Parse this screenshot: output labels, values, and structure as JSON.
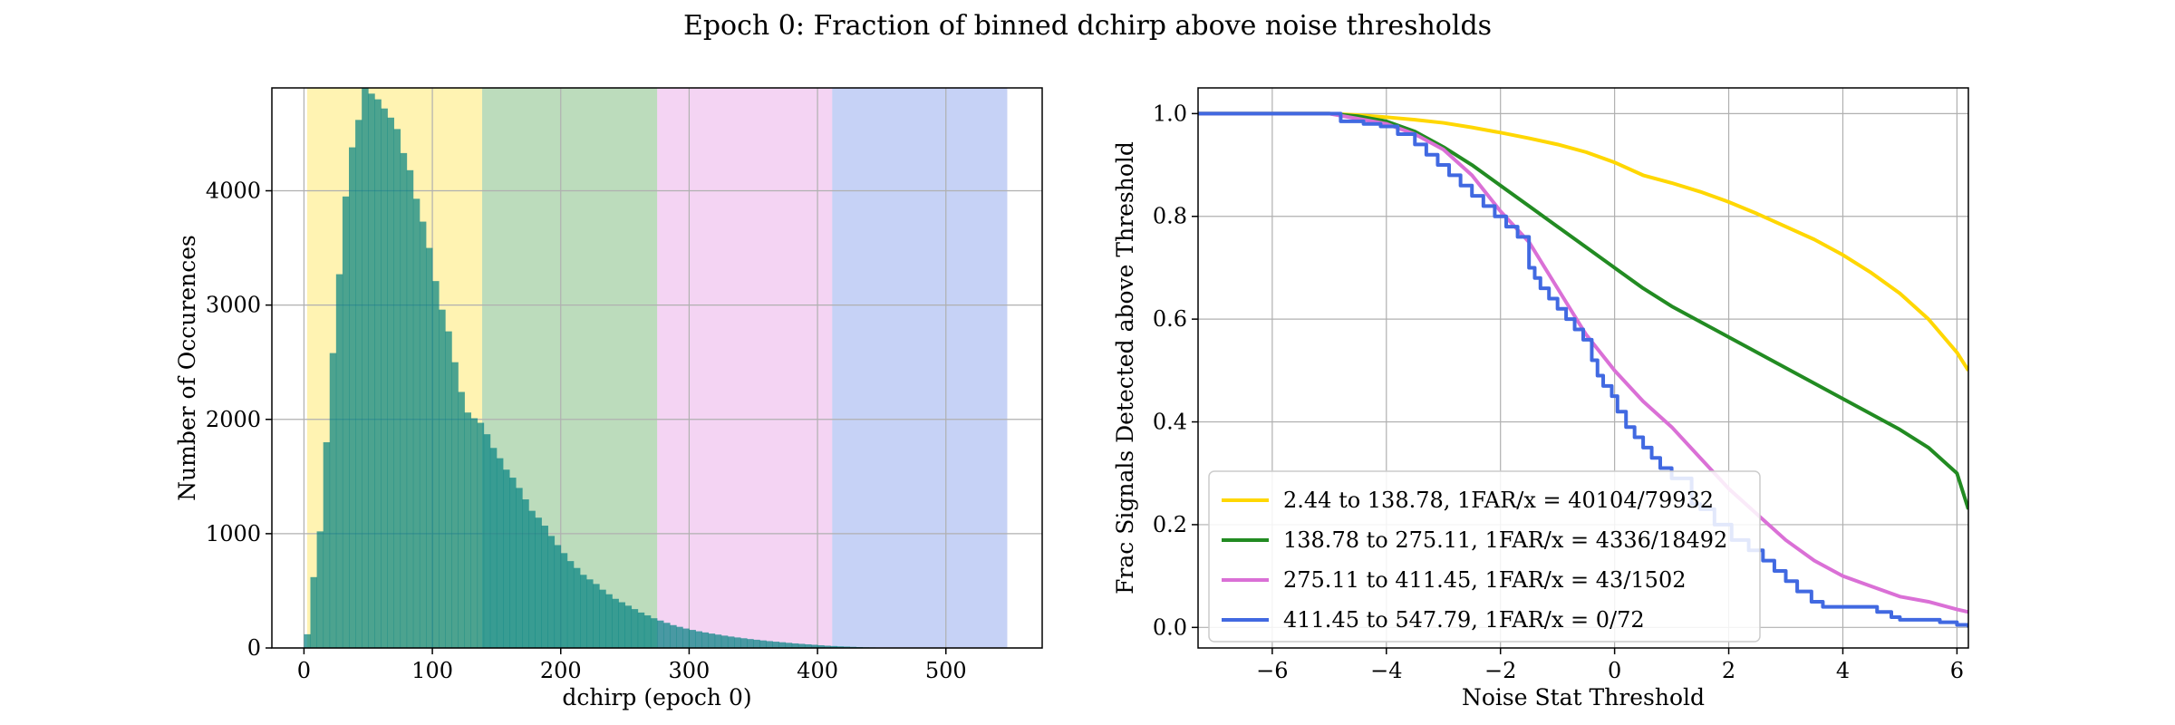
{
  "figure": {
    "title": "Epoch 0: Fraction of binned dchirp above noise thresholds"
  },
  "chart_data": [
    {
      "type": "bar",
      "xlabel": "dchirp (epoch 0)",
      "ylabel": "Number of Occurences",
      "xlim": [
        -25,
        575
      ],
      "ylim": [
        0,
        4900
      ],
      "xticks": [
        0,
        100,
        200,
        300,
        400,
        500
      ],
      "yticks": [
        0,
        1000,
        2000,
        3000,
        4000
      ],
      "grid": true,
      "bands": [
        {
          "from": 2.44,
          "to": 138.78,
          "color": "#ffd700"
        },
        {
          "from": 138.78,
          "to": 275.11,
          "color": "#228b22"
        },
        {
          "from": 275.11,
          "to": 411.45,
          "color": "#da70d6"
        },
        {
          "from": 411.45,
          "to": 547.79,
          "color": "#4169e1"
        }
      ],
      "bin_width": 5,
      "bin_start": 0,
      "values": [
        120,
        620,
        1020,
        1800,
        2580,
        3270,
        3950,
        4380,
        4620,
        4900,
        4850,
        4800,
        4720,
        4640,
        4540,
        4330,
        4180,
        3930,
        3730,
        3500,
        3210,
        2960,
        2770,
        2500,
        2240,
        2060,
        2010,
        1970,
        1870,
        1750,
        1660,
        1560,
        1490,
        1400,
        1300,
        1200,
        1140,
        1070,
        980,
        900,
        830,
        760,
        700,
        640,
        600,
        560,
        510,
        470,
        430,
        400,
        370,
        340,
        310,
        285,
        260,
        240,
        220,
        200,
        185,
        170,
        158,
        146,
        136,
        126,
        117,
        108,
        100,
        92,
        85,
        78,
        72,
        66,
        60,
        55,
        50,
        45,
        40,
        36,
        32,
        28,
        24,
        20,
        17,
        14,
        12,
        10,
        8,
        6,
        5,
        4
      ]
    },
    {
      "type": "line",
      "xlabel": "Noise Stat Threshold",
      "ylabel": "Frac Signals Detected above Threshold",
      "xlim": [
        -7.3,
        6.2
      ],
      "ylim": [
        -0.04,
        1.05
      ],
      "xticks": [
        -6,
        -4,
        -2,
        0,
        2,
        4,
        6
      ],
      "xtick_labels": [
        "−6",
        "−4",
        "−2",
        "0",
        "2",
        "4",
        "6"
      ],
      "yticks": [
        0.0,
        0.2,
        0.4,
        0.6,
        0.8,
        1.0
      ],
      "ytick_labels": [
        "0.0",
        "0.2",
        "0.4",
        "0.6",
        "0.8",
        "1.0"
      ],
      "grid": true,
      "legend_position": "lower-left",
      "series": [
        {
          "name": "2.44 to 138.78, 1FAR/x = 40104/79932",
          "color": "#ffd700",
          "step": false,
          "x": [
            -7.3,
            -5,
            -4.5,
            -4,
            -3.5,
            -3,
            -2.5,
            -2,
            -1.5,
            -1,
            -0.5,
            0,
            0.5,
            1,
            1.5,
            2,
            2.5,
            3,
            3.5,
            4,
            4.5,
            5,
            5.5,
            6,
            6.2
          ],
          "y": [
            1.0,
            1.0,
            0.997,
            0.993,
            0.988,
            0.982,
            0.973,
            0.963,
            0.952,
            0.94,
            0.925,
            0.905,
            0.88,
            0.865,
            0.848,
            0.828,
            0.805,
            0.78,
            0.755,
            0.725,
            0.69,
            0.65,
            0.6,
            0.535,
            0.5
          ]
        },
        {
          "name": "138.78 to 275.11, 1FAR/x = 4336/18492",
          "color": "#228b22",
          "step": false,
          "x": [
            -7.3,
            -5,
            -4.5,
            -4,
            -3.5,
            -3,
            -2.5,
            -2,
            -1.5,
            -1,
            -0.5,
            0,
            0.5,
            1,
            1.5,
            2,
            2.5,
            3,
            3.5,
            4,
            4.5,
            5,
            5.5,
            6,
            6.2
          ],
          "y": [
            1.0,
            1.0,
            0.995,
            0.985,
            0.965,
            0.935,
            0.9,
            0.86,
            0.82,
            0.78,
            0.74,
            0.7,
            0.66,
            0.625,
            0.595,
            0.565,
            0.535,
            0.505,
            0.475,
            0.445,
            0.415,
            0.385,
            0.35,
            0.3,
            0.23
          ]
        },
        {
          "name": "275.11 to 411.45, 1FAR/x = 43/1502",
          "color": "#da70d6",
          "step": false,
          "x": [
            -7.3,
            -5,
            -4.5,
            -4,
            -3.5,
            -3,
            -2.5,
            -2,
            -1.5,
            -1,
            -0.5,
            0,
            0.5,
            1,
            1.5,
            2,
            2.5,
            3,
            3.5,
            4,
            4.5,
            5,
            5.5,
            6,
            6.2
          ],
          "y": [
            1.0,
            1.0,
            0.99,
            0.98,
            0.96,
            0.93,
            0.88,
            0.81,
            0.75,
            0.66,
            0.57,
            0.5,
            0.44,
            0.39,
            0.33,
            0.27,
            0.22,
            0.17,
            0.13,
            0.1,
            0.08,
            0.06,
            0.05,
            0.035,
            0.03
          ]
        },
        {
          "name": "411.45 to 547.79, 1FAR/x = 0/72",
          "color": "#4169e1",
          "step": true,
          "x": [
            -7.3,
            -4.8,
            -4.4,
            -4.1,
            -3.8,
            -3.5,
            -3.3,
            -3.1,
            -2.9,
            -2.7,
            -2.5,
            -2.3,
            -2.1,
            -1.9,
            -1.7,
            -1.5,
            -1.4,
            -1.3,
            -1.15,
            -1.0,
            -0.85,
            -0.7,
            -0.55,
            -0.4,
            -0.3,
            -0.2,
            -0.05,
            0.05,
            0.2,
            0.35,
            0.5,
            0.65,
            0.8,
            1.0,
            1.35,
            1.5,
            1.75,
            2.05,
            2.35,
            2.6,
            2.8,
            3.0,
            3.2,
            3.45,
            3.65,
            4.0,
            4.6,
            4.85,
            5.0,
            5.3,
            5.7,
            6.0,
            6.2
          ],
          "y": [
            1.0,
            0.985,
            0.98,
            0.975,
            0.96,
            0.94,
            0.92,
            0.9,
            0.88,
            0.86,
            0.84,
            0.82,
            0.8,
            0.78,
            0.76,
            0.7,
            0.68,
            0.66,
            0.64,
            0.62,
            0.6,
            0.58,
            0.56,
            0.52,
            0.49,
            0.47,
            0.45,
            0.42,
            0.39,
            0.37,
            0.35,
            0.33,
            0.31,
            0.29,
            0.24,
            0.23,
            0.2,
            0.17,
            0.15,
            0.13,
            0.11,
            0.09,
            0.07,
            0.05,
            0.04,
            0.04,
            0.03,
            0.02,
            0.015,
            0.015,
            0.01,
            0.005,
            0.0
          ]
        }
      ]
    }
  ]
}
